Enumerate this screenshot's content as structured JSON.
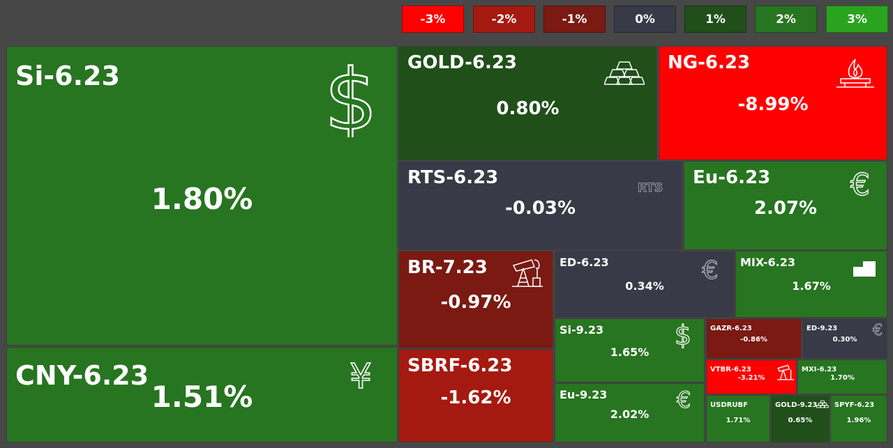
{
  "colors": {
    "neg3": "#ff0000",
    "neg2": "#a51a10",
    "neg1": "#7a1a12",
    "zero": "#393a47",
    "pos1": "#204f1a",
    "pos2": "#277520",
    "pos3": "#2aa31f"
  },
  "legend": [
    "-3%",
    "-2%",
    "-1%",
    "0%",
    "1%",
    "2%",
    "3%"
  ],
  "tiles": {
    "si623": {
      "name": "Si-6.23",
      "pct": "1.80%",
      "icon": "dollar-icon"
    },
    "cny623": {
      "name": "CNY-6.23",
      "pct": "1.51%",
      "icon": "yen-icon"
    },
    "gold623": {
      "name": "GOLD-6.23",
      "pct": "0.80%",
      "icon": "gold-bars-icon"
    },
    "ng623": {
      "name": "NG-6.23",
      "pct": "-8.99%",
      "icon": "gas-flame-icon"
    },
    "rts623": {
      "name": "RTS-6.23",
      "pct": "-0.03%",
      "icon": "rts-logo-icon",
      "icon_text": "RTS"
    },
    "eu623": {
      "name": "Eu-6.23",
      "pct": "2.07%",
      "icon": "euro-icon"
    },
    "br723": {
      "name": "BR-7.23",
      "pct": "-0.97%",
      "icon": "oil-pump-icon"
    },
    "sbrf623": {
      "name": "SBRF-6.23",
      "pct": "-1.62%"
    },
    "ed623": {
      "name": "ED-6.23",
      "pct": "0.34%",
      "icon": "euro-icon"
    },
    "mix623": {
      "name": "MIX-6.23",
      "pct": "1.67%",
      "icon": "steps-icon"
    },
    "si923": {
      "name": "Si-9.23",
      "pct": "1.65%",
      "icon": "dollar-icon"
    },
    "eu923": {
      "name": "Eu-9.23",
      "pct": "2.02%",
      "icon": "euro-icon"
    },
    "gazr623": {
      "name": "GAZR-6.23",
      "pct": "-0.86%"
    },
    "ed923": {
      "name": "ED-9.23",
      "pct": "0.30%",
      "icon": "euro-icon"
    },
    "vtbr623": {
      "name": "VTBR-6.23",
      "pct": "-3.21%",
      "icon": "oil-pump-icon"
    },
    "mxi623": {
      "name": "MXI-6.23",
      "pct": "1.70%"
    },
    "usdrubf": {
      "name": "USDRUBF",
      "pct": "1.71%"
    },
    "gold923": {
      "name": "GOLD-9.23",
      "pct": "0.65%",
      "icon": "gold-bars-icon"
    },
    "spyf623": {
      "name": "SPYF-6.23",
      "pct": "1.96%"
    }
  }
}
